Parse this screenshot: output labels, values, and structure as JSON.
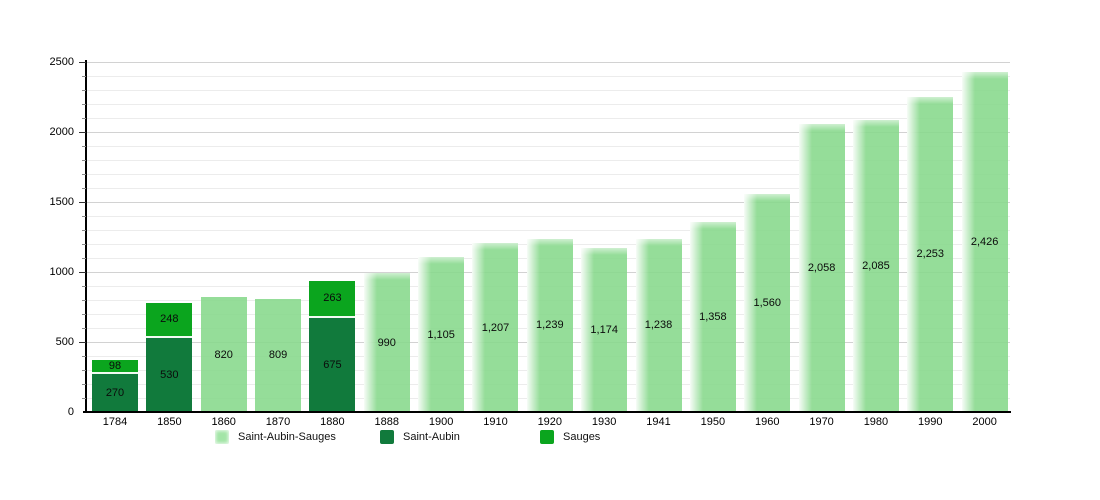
{
  "chart_data": {
    "type": "bar",
    "stacked": true,
    "title": "",
    "xlabel": "",
    "ylabel": "",
    "ylim": [
      0,
      2500
    ],
    "y_major_step": 500,
    "y_minor_step": 100,
    "y_tick_labels": [
      "0",
      "500",
      "1000",
      "1500",
      "2000",
      "2500"
    ],
    "grid": "on",
    "legend_position": "bottom",
    "categories": [
      "1784",
      "1850",
      "1860",
      "1870",
      "1880",
      "1888",
      "1900",
      "1910",
      "1920",
      "1930",
      "1941",
      "1950",
      "1960",
      "1970",
      "1980",
      "1990",
      "2000"
    ],
    "series": [
      {
        "name": "Saint-Aubin-Sauges",
        "color": "#8fdc94",
        "values": [
          null,
          null,
          820,
          809,
          null,
          990,
          1105,
          1207,
          1239,
          1174,
          1238,
          1358,
          1560,
          2058,
          2085,
          2253,
          2426
        ]
      },
      {
        "name": "Saint-Aubin",
        "color": "#117a3c",
        "values": [
          270,
          530,
          null,
          null,
          675,
          null,
          null,
          null,
          null,
          null,
          null,
          null,
          null,
          null,
          null,
          null,
          null
        ]
      },
      {
        "name": "Sauges",
        "color": "#0ba51e",
        "values": [
          98,
          248,
          null,
          null,
          263,
          null,
          null,
          null,
          null,
          null,
          null,
          null,
          null,
          null,
          null,
          null,
          null
        ]
      }
    ],
    "bars": [
      {
        "year": "1784",
        "soft": false,
        "segments": [
          {
            "series": "Saint-Aubin",
            "value": 270,
            "label": "270"
          },
          {
            "series": "Sauges",
            "value": 98,
            "label": "98"
          }
        ]
      },
      {
        "year": "1850",
        "soft": false,
        "segments": [
          {
            "series": "Saint-Aubin",
            "value": 530,
            "label": "530"
          },
          {
            "series": "Sauges",
            "value": 248,
            "label": "248"
          }
        ]
      },
      {
        "year": "1860",
        "soft": false,
        "segments": [
          {
            "series": "Saint-Aubin-Sauges",
            "value": 820,
            "label": "820"
          }
        ]
      },
      {
        "year": "1870",
        "soft": false,
        "segments": [
          {
            "series": "Saint-Aubin-Sauges",
            "value": 809,
            "label": "809"
          }
        ]
      },
      {
        "year": "1880",
        "soft": false,
        "segments": [
          {
            "series": "Saint-Aubin",
            "value": 675,
            "label": "675"
          },
          {
            "series": "Sauges",
            "value": 263,
            "label": "263"
          }
        ]
      },
      {
        "year": "1888",
        "soft": true,
        "segments": [
          {
            "series": "Saint-Aubin-Sauges",
            "value": 990,
            "label": "990"
          }
        ]
      },
      {
        "year": "1900",
        "soft": true,
        "segments": [
          {
            "series": "Saint-Aubin-Sauges",
            "value": 1105,
            "label": "1,105"
          }
        ]
      },
      {
        "year": "1910",
        "soft": true,
        "segments": [
          {
            "series": "Saint-Aubin-Sauges",
            "value": 1207,
            "label": "1,207"
          }
        ]
      },
      {
        "year": "1920",
        "soft": true,
        "segments": [
          {
            "series": "Saint-Aubin-Sauges",
            "value": 1239,
            "label": "1,239"
          }
        ]
      },
      {
        "year": "1930",
        "soft": true,
        "segments": [
          {
            "series": "Saint-Aubin-Sauges",
            "value": 1174,
            "label": "1,174"
          }
        ]
      },
      {
        "year": "1941",
        "soft": true,
        "segments": [
          {
            "series": "Saint-Aubin-Sauges",
            "value": 1238,
            "label": "1,238"
          }
        ]
      },
      {
        "year": "1950",
        "soft": true,
        "segments": [
          {
            "series": "Saint-Aubin-Sauges",
            "value": 1358,
            "label": "1,358"
          }
        ]
      },
      {
        "year": "1960",
        "soft": true,
        "segments": [
          {
            "series": "Saint-Aubin-Sauges",
            "value": 1560,
            "label": "1,560"
          }
        ]
      },
      {
        "year": "1970",
        "soft": true,
        "segments": [
          {
            "series": "Saint-Aubin-Sauges",
            "value": 2058,
            "label": "2,058"
          }
        ]
      },
      {
        "year": "1980",
        "soft": true,
        "segments": [
          {
            "series": "Saint-Aubin-Sauges",
            "value": 2085,
            "label": "2,085"
          }
        ]
      },
      {
        "year": "1990",
        "soft": true,
        "segments": [
          {
            "series": "Saint-Aubin-Sauges",
            "value": 2253,
            "label": "2,253"
          }
        ]
      },
      {
        "year": "2000",
        "soft": true,
        "segments": [
          {
            "series": "Saint-Aubin-Sauges",
            "value": 2426,
            "label": "2,426"
          }
        ]
      }
    ],
    "legend": [
      {
        "label": "Saint-Aubin-Sauges",
        "color": "#a3e5a7",
        "soft": true
      },
      {
        "label": "Saint-Aubin",
        "color": "#117a3c",
        "soft": false
      },
      {
        "label": "Sauges",
        "color": "#0ba51e",
        "soft": false
      }
    ]
  }
}
